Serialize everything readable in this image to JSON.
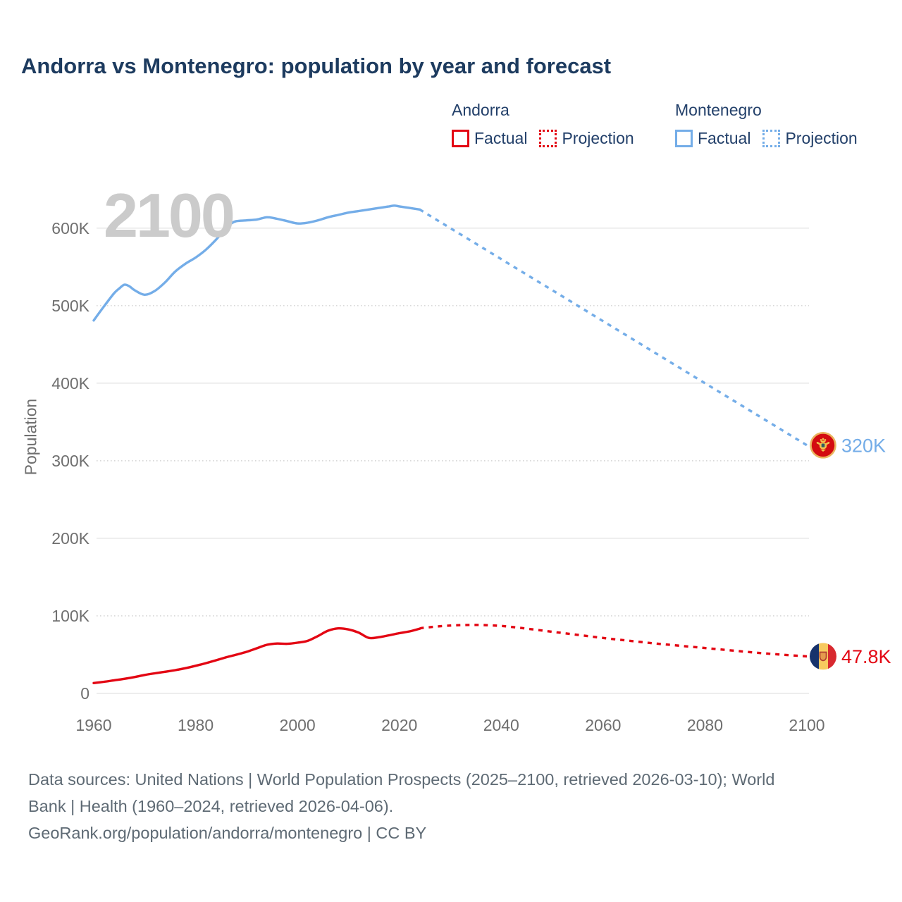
{
  "header": {
    "title": "Andorra vs Montenegro: population by year and forecast"
  },
  "legend": {
    "groups": [
      {
        "name": "Andorra",
        "color": "#e30613",
        "items": [
          {
            "label": "Factual",
            "style": "solid"
          },
          {
            "label": "Projection",
            "style": "dotted"
          }
        ]
      },
      {
        "name": "Montenegro",
        "color": "#74ade8",
        "items": [
          {
            "label": "Factual",
            "style": "solid"
          },
          {
            "label": "Projection",
            "style": "dotted"
          }
        ]
      }
    ]
  },
  "chart_data": {
    "type": "line",
    "title": "Andorra vs Montenegro: population by year and forecast",
    "ylabel": "Population",
    "watermark": "2100",
    "x_axis": {
      "range": [
        1960,
        2100
      ],
      "ticks": [
        1960,
        1980,
        2000,
        2020,
        2040,
        2060,
        2080,
        2100
      ]
    },
    "y_axis": {
      "range": [
        0,
        650000
      ],
      "ticks": [
        {
          "value": 0,
          "label": "0"
        },
        {
          "value": 100000,
          "label": "100K"
        },
        {
          "value": 200000,
          "label": "200K"
        },
        {
          "value": 300000,
          "label": "300K"
        },
        {
          "value": 400000,
          "label": "400K"
        },
        {
          "value": 500000,
          "label": "500K"
        },
        {
          "value": 600000,
          "label": "600K"
        }
      ]
    },
    "series": [
      {
        "id": "montenegro-factual",
        "country": "Montenegro",
        "kind": "Factual",
        "color": "#74ade8",
        "line": "solid",
        "points": [
          [
            1960,
            481000
          ],
          [
            1962,
            499000
          ],
          [
            1964,
            516000
          ],
          [
            1965,
            522000
          ],
          [
            1966,
            527000
          ],
          [
            1967,
            525000
          ],
          [
            1968,
            520000
          ],
          [
            1970,
            514000
          ],
          [
            1972,
            519000
          ],
          [
            1974,
            530000
          ],
          [
            1976,
            544000
          ],
          [
            1978,
            554000
          ],
          [
            1980,
            562000
          ],
          [
            1982,
            572000
          ],
          [
            1984,
            585000
          ],
          [
            1986,
            600000
          ],
          [
            1987,
            606000
          ],
          [
            1988,
            609000
          ],
          [
            1990,
            610000
          ],
          [
            1992,
            611000
          ],
          [
            1994,
            614000
          ],
          [
            1996,
            612000
          ],
          [
            1998,
            609000
          ],
          [
            2000,
            606000
          ],
          [
            2002,
            607000
          ],
          [
            2004,
            610000
          ],
          [
            2006,
            614000
          ],
          [
            2008,
            617000
          ],
          [
            2010,
            620000
          ],
          [
            2012,
            622000
          ],
          [
            2014,
            624000
          ],
          [
            2016,
            626000
          ],
          [
            2018,
            628000
          ],
          [
            2019,
            629000
          ],
          [
            2020,
            628000
          ],
          [
            2022,
            626000
          ],
          [
            2024,
            624000
          ]
        ]
      },
      {
        "id": "montenegro-projection",
        "country": "Montenegro",
        "kind": "Projection",
        "color": "#74ade8",
        "line": "dotted",
        "points": [
          [
            2024,
            624000
          ],
          [
            2030,
            600000
          ],
          [
            2040,
            560000
          ],
          [
            2050,
            520000
          ],
          [
            2060,
            480000
          ],
          [
            2070,
            440000
          ],
          [
            2080,
            400000
          ],
          [
            2090,
            360000
          ],
          [
            2100,
            320000
          ]
        ],
        "end_label": "320K",
        "end_flag": "montenegro-flag"
      },
      {
        "id": "andorra-factual",
        "country": "Andorra",
        "kind": "Factual",
        "color": "#e30613",
        "line": "solid",
        "points": [
          [
            1960,
            13400
          ],
          [
            1962,
            15000
          ],
          [
            1964,
            16900
          ],
          [
            1966,
            18800
          ],
          [
            1968,
            21100
          ],
          [
            1970,
            23800
          ],
          [
            1972,
            25900
          ],
          [
            1974,
            27900
          ],
          [
            1976,
            30000
          ],
          [
            1978,
            32500
          ],
          [
            1980,
            35600
          ],
          [
            1982,
            39000
          ],
          [
            1984,
            42700
          ],
          [
            1986,
            46600
          ],
          [
            1988,
            50000
          ],
          [
            1990,
            53600
          ],
          [
            1992,
            58200
          ],
          [
            1994,
            62700
          ],
          [
            1996,
            64300
          ],
          [
            1998,
            64000
          ],
          [
            2000,
            65400
          ],
          [
            2002,
            67800
          ],
          [
            2004,
            74000
          ],
          [
            2006,
            80900
          ],
          [
            2008,
            83900
          ],
          [
            2010,
            82500
          ],
          [
            2012,
            78400
          ],
          [
            2014,
            71600
          ],
          [
            2016,
            72500
          ],
          [
            2018,
            75000
          ],
          [
            2020,
            77700
          ],
          [
            2022,
            80000
          ],
          [
            2024,
            83500
          ]
        ]
      },
      {
        "id": "andorra-projection",
        "country": "Andorra",
        "kind": "Projection",
        "color": "#e30613",
        "line": "dotted",
        "points": [
          [
            2024,
            83500
          ],
          [
            2025,
            84800
          ],
          [
            2030,
            87500
          ],
          [
            2035,
            88300
          ],
          [
            2040,
            87000
          ],
          [
            2045,
            83500
          ],
          [
            2050,
            79500
          ],
          [
            2055,
            75500
          ],
          [
            2060,
            71500
          ],
          [
            2065,
            68000
          ],
          [
            2070,
            64500
          ],
          [
            2075,
            61500
          ],
          [
            2080,
            58500
          ],
          [
            2085,
            55500
          ],
          [
            2090,
            52500
          ],
          [
            2095,
            50000
          ],
          [
            2100,
            47800
          ]
        ],
        "end_label": "47.8K",
        "end_flag": "andorra-flag"
      }
    ]
  },
  "footer": {
    "lines": [
      "Data sources: United Nations | World Population Prospects (2025–2100, retrieved 2026-03-10); World",
      "Bank | Health (1960–2024, retrieved 2026-04-06).",
      "GeoRank.org/population/andorra/montenegro | CC BY"
    ]
  }
}
